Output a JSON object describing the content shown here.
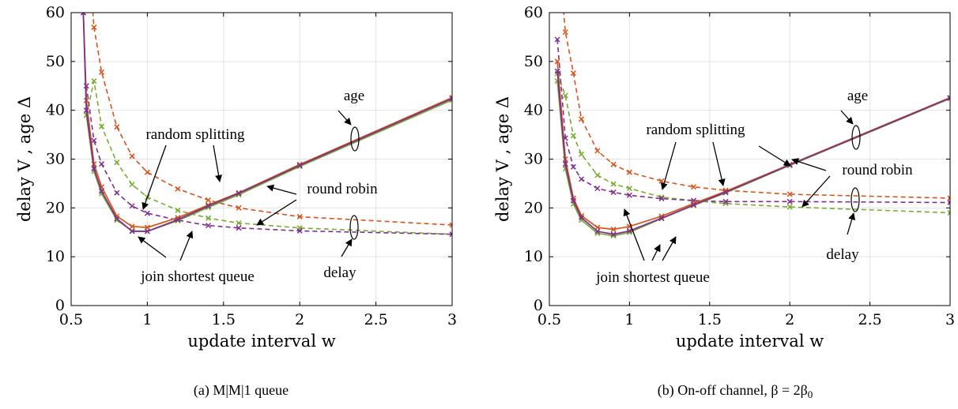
{
  "colors": {
    "orange": "#D95319",
    "green": "#77AC30",
    "purple": "#7E2F8E",
    "red": "#C0392B"
  },
  "chart_data": [
    {
      "type": "line",
      "caption": "(a) M|M|1 queue",
      "xlabel": "update interval w",
      "ylabel": "delay V , age Δ",
      "xlim": [
        0.5,
        3
      ],
      "ylim": [
        0,
        60
      ],
      "xticks": [
        0.5,
        1,
        1.5,
        2,
        2.5,
        3
      ],
      "xticklabels": [
        "0.5",
        "1",
        "1.5",
        "2",
        "2.5",
        "3"
      ],
      "yticks": [
        0,
        10,
        20,
        30,
        40,
        50,
        60
      ],
      "yticklabels": [
        "0",
        "10",
        "20",
        "30",
        "40",
        "50",
        "60"
      ],
      "grid": true,
      "annotations": [
        "age",
        "random splitting",
        "round robin",
        "join shortest queue",
        "delay"
      ],
      "series": [
        {
          "group": "delay",
          "color": "#D95319",
          "dash": true,
          "x": [
            0.6,
            0.65,
            0.7,
            0.8,
            0.9,
            1.0,
            1.2,
            1.4,
            1.6,
            2.0,
            3.0
          ],
          "y": [
            78,
            57,
            47.8,
            36.6,
            30.6,
            27.3,
            23.9,
            21.6,
            20.0,
            18.2,
            16.5
          ]
        },
        {
          "group": "delay",
          "color": "#77AC30",
          "dash": true,
          "x": [
            0.6,
            0.65,
            0.7,
            0.8,
            0.9,
            1.0,
            1.2,
            1.4,
            1.6,
            2.0,
            3.0
          ],
          "y": [
            39,
            46,
            36.7,
            29.3,
            24.8,
            22.2,
            19.5,
            17.9,
            16.9,
            15.9,
            14.6
          ]
        },
        {
          "group": "delay",
          "color": "#7E2F8E",
          "dash": true,
          "x": [
            0.6,
            0.65,
            0.7,
            0.8,
            0.9,
            1.0,
            1.2,
            1.4,
            1.6,
            2.0,
            3.0
          ],
          "y": [
            45,
            33.8,
            29,
            23.1,
            20.4,
            18.9,
            17.5,
            16.4,
            15.9,
            15.3,
            14.6
          ]
        },
        {
          "group": "age",
          "color": "#D95319",
          "dash": false,
          "x": [
            0.58,
            0.6,
            0.65,
            0.7,
            0.8,
            0.9,
            1.0,
            1.2,
            1.4,
            1.6,
            2.0,
            3.0
          ],
          "y": [
            60,
            42,
            29,
            24.3,
            18.3,
            16.2,
            16.0,
            18.0,
            20.6,
            23.1,
            28.9,
            42.6
          ]
        },
        {
          "group": "age",
          "color": "#77AC30",
          "dash": false,
          "x": [
            0.58,
            0.6,
            0.65,
            0.7,
            0.8,
            0.9,
            1.0,
            1.2,
            1.4,
            1.6,
            2.0,
            3.0
          ],
          "y": [
            60,
            39,
            27.5,
            22.9,
            17.5,
            15.3,
            15.2,
            17.4,
            20.1,
            22.7,
            28.5,
            42.1
          ]
        },
        {
          "group": "age",
          "color": "#7E2F8E",
          "dash": false,
          "x": [
            0.58,
            0.6,
            0.65,
            0.7,
            0.8,
            0.9,
            1.0,
            1.2,
            1.4,
            1.6,
            2.0,
            3.0
          ],
          "y": [
            60,
            40,
            28,
            23.4,
            17.8,
            15.2,
            15.2,
            17.6,
            20.4,
            23.0,
            28.7,
            42.4
          ]
        }
      ]
    },
    {
      "type": "line",
      "caption": "(b) On-off channel, β = 2β",
      "caption_sub": "0",
      "xlabel": "update interval w",
      "ylabel": "delay V , age Δ",
      "xlim": [
        0.5,
        3
      ],
      "ylim": [
        0,
        60
      ],
      "xticks": [
        0.5,
        1,
        1.5,
        2,
        2.5,
        3
      ],
      "xticklabels": [
        "0.5",
        "1",
        "1.5",
        "2",
        "2.5",
        "3"
      ],
      "yticks": [
        0,
        10,
        20,
        30,
        40,
        50,
        60
      ],
      "yticklabels": [
        "0",
        "10",
        "20",
        "30",
        "40",
        "50",
        "60"
      ],
      "grid": true,
      "annotations": [
        "age",
        "random splitting",
        "round robin",
        "join shortest queue",
        "delay"
      ],
      "series": [
        {
          "group": "delay",
          "color": "#D95319",
          "dash": true,
          "x": [
            0.55,
            0.6,
            0.65,
            0.7,
            0.8,
            0.9,
            1.0,
            1.2,
            1.4,
            1.6,
            2.0,
            3.0
          ],
          "y": [
            75,
            56,
            47.6,
            38.2,
            31.7,
            28.9,
            27.3,
            25.5,
            24.3,
            23.6,
            22.8,
            22.0
          ]
        },
        {
          "group": "delay",
          "color": "#77AC30",
          "dash": true,
          "x": [
            0.55,
            0.6,
            0.65,
            0.7,
            0.8,
            0.9,
            1.0,
            1.2,
            1.4,
            1.6,
            2.0,
            3.0
          ],
          "y": [
            47.5,
            43,
            34.8,
            31.0,
            26.7,
            24.9,
            24.0,
            22.2,
            21.5,
            20.9,
            20.2,
            19.0
          ]
        },
        {
          "group": "delay",
          "color": "#7E2F8E",
          "dash": true,
          "x": [
            0.55,
            0.6,
            0.65,
            0.7,
            0.8,
            0.9,
            1.0,
            1.2,
            1.4,
            1.6,
            2.0,
            3.0
          ],
          "y": [
            54.5,
            34.3,
            28.4,
            25.9,
            24.0,
            23.2,
            22.6,
            21.9,
            21.5,
            21.3,
            21.3,
            21.1
          ]
        },
        {
          "group": "age",
          "color": "#D95319",
          "dash": false,
          "x": [
            0.55,
            0.6,
            0.65,
            0.7,
            0.8,
            0.9,
            1.0,
            1.2,
            1.4,
            1.6,
            2.0,
            3.0
          ],
          "y": [
            50,
            30,
            22,
            18.4,
            16.0,
            15.6,
            16.2,
            18.3,
            20.9,
            23.4,
            28.9,
            42.6
          ]
        },
        {
          "group": "age",
          "color": "#77AC30",
          "dash": false,
          "x": [
            0.55,
            0.6,
            0.65,
            0.7,
            0.8,
            0.9,
            1.0,
            1.2,
            1.4,
            1.6,
            2.0,
            3.0
          ],
          "y": [
            46,
            28,
            20.8,
            17.5,
            14.8,
            14.3,
            15.0,
            17.8,
            20.5,
            23.1,
            28.7,
            42.4
          ]
        },
        {
          "group": "age",
          "color": "#7E2F8E",
          "dash": false,
          "x": [
            0.55,
            0.6,
            0.65,
            0.7,
            0.8,
            0.9,
            1.0,
            1.2,
            1.4,
            1.6,
            2.0,
            3.0
          ],
          "y": [
            48,
            29,
            21.5,
            18.0,
            15.2,
            14.6,
            15.3,
            17.9,
            20.6,
            23.2,
            28.8,
            42.5
          ]
        }
      ]
    }
  ]
}
